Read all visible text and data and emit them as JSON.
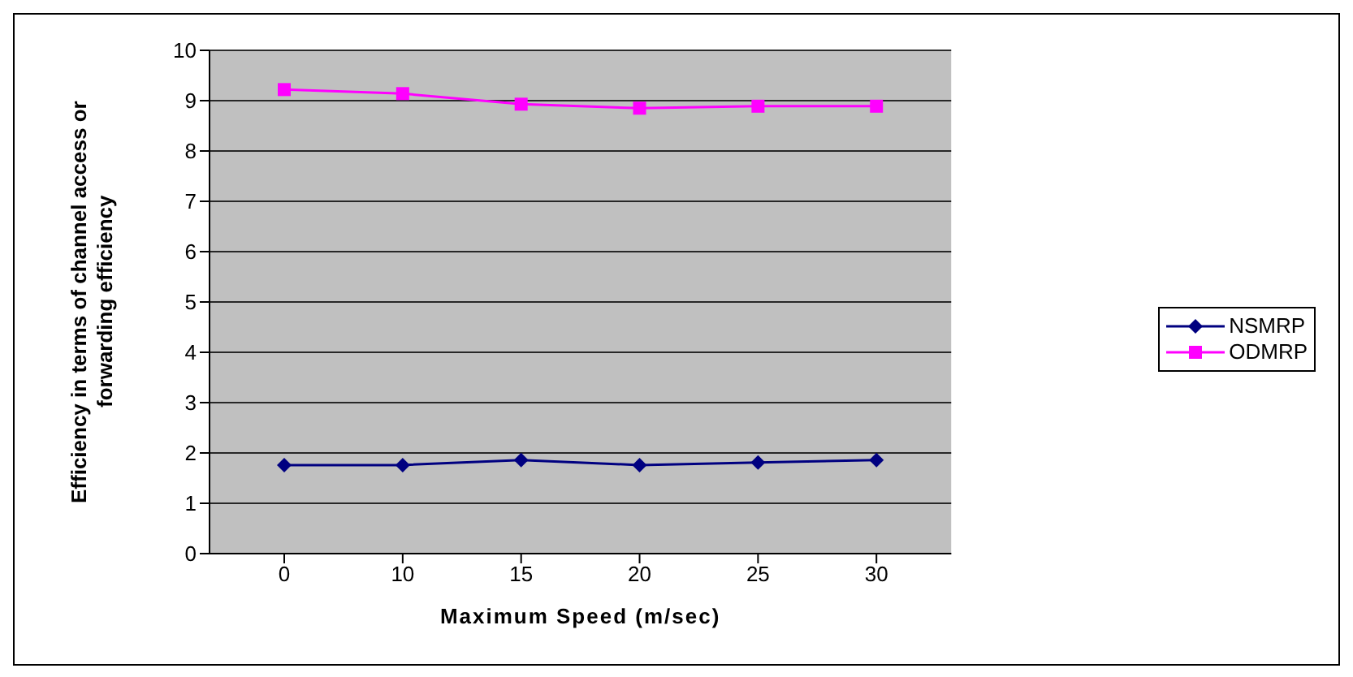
{
  "chart_data": {
    "type": "line",
    "xlabel": "Maximum Speed (m/sec)",
    "ylabel": "Efficiency in terms of channel access or forwarding efficiency",
    "categories": [
      "0",
      "10",
      "15",
      "20",
      "25",
      "30"
    ],
    "series": [
      {
        "name": "NSMRP",
        "color": "#000080",
        "marker": "diamond",
        "values": [
          1.76,
          1.76,
          1.86,
          1.76,
          1.81,
          1.86
        ]
      },
      {
        "name": "ODMRP",
        "color": "#ff00ff",
        "marker": "square",
        "values": [
          9.22,
          9.14,
          8.93,
          8.85,
          8.89,
          8.89
        ]
      }
    ],
    "ylim": [
      0,
      10
    ],
    "yticks": [
      0,
      1,
      2,
      3,
      4,
      5,
      6,
      7,
      8,
      9,
      10
    ],
    "grid": "y",
    "legend": "right"
  }
}
